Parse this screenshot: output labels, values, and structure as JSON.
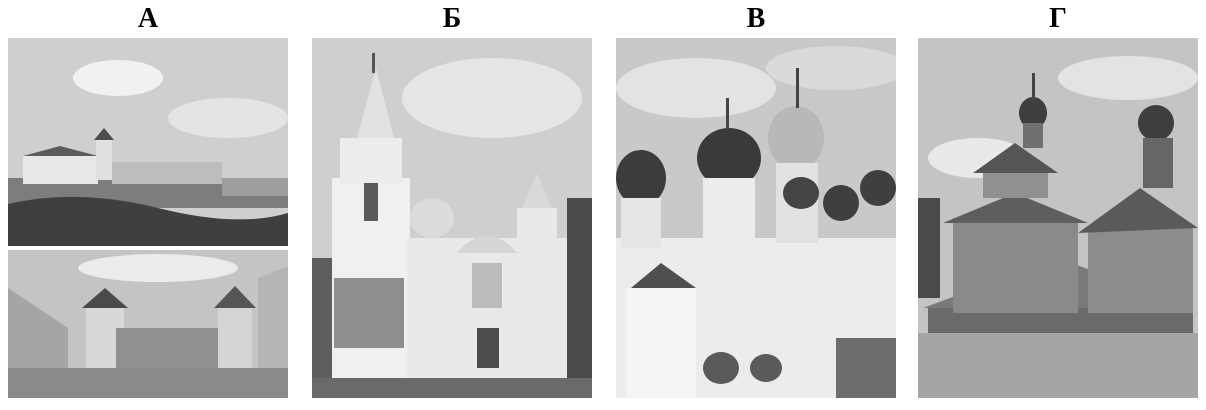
{
  "panels": [
    {
      "label": "А",
      "subject": "castle-on-hill-and-courtyard"
    },
    {
      "label": "Б",
      "subject": "white-church-with-conical-towers"
    },
    {
      "label": "В",
      "subject": "cathedral-with-domes"
    },
    {
      "label": "Г",
      "subject": "wooden-church"
    }
  ]
}
